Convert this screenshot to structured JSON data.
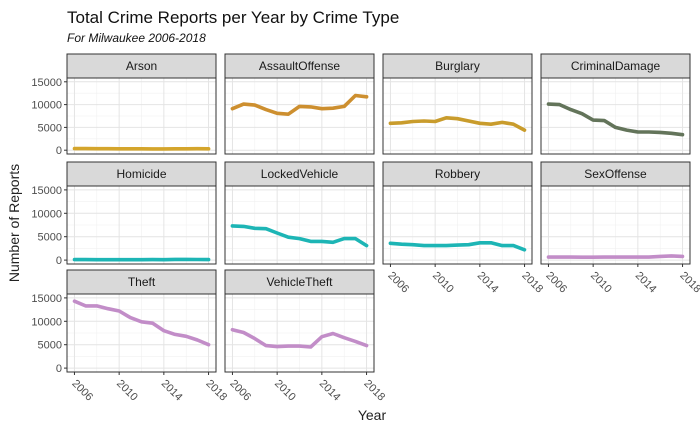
{
  "chart_data": {
    "type": "line",
    "title": "Total Crime Reports per Year by Crime Type",
    "subtitle": "For Milwaukee 2006-2018",
    "xlabel": "Year",
    "ylabel": "Number of Reports",
    "xlim": [
      2006,
      2018
    ],
    "ylim": [
      0,
      15000
    ],
    "x_ticks": [
      "2006",
      "2010",
      "2014",
      "2018"
    ],
    "y_ticks": [
      "0",
      "5000",
      "10000",
      "15000"
    ],
    "facet_layout": "wrap 4 columns",
    "grid": true,
    "x": [
      2006,
      2007,
      2008,
      2009,
      2010,
      2011,
      2012,
      2013,
      2014,
      2015,
      2016,
      2017,
      2018
    ],
    "series": [
      {
        "name": "Arson",
        "color": "#D4A52C",
        "values": [
          350,
          340,
          330,
          320,
          310,
          300,
          300,
          290,
          290,
          300,
          310,
          320,
          310
        ]
      },
      {
        "name": "AssaultOffense",
        "color": "#CD8F2F",
        "values": [
          9100,
          10100,
          9900,
          8900,
          8100,
          7900,
          9600,
          9500,
          9100,
          9200,
          9600,
          12000,
          11700
        ]
      },
      {
        "name": "Burglary",
        "color": "#C99C2C",
        "values": [
          5900,
          6000,
          6300,
          6400,
          6300,
          7100,
          6900,
          6400,
          5900,
          5700,
          6100,
          5700,
          4400
        ]
      },
      {
        "name": "CriminalDamage",
        "color": "#63745A",
        "values": [
          10100,
          10000,
          8900,
          8000,
          6600,
          6500,
          5000,
          4400,
          4000,
          4000,
          3900,
          3700,
          3400
        ]
      },
      {
        "name": "Homicide",
        "color": "#1DB5B5",
        "values": [
          110,
          105,
          75,
          80,
          95,
          90,
          95,
          105,
          90,
          145,
          140,
          120,
          100
        ]
      },
      {
        "name": "LockedVehicle",
        "color": "#1DB5B5",
        "values": [
          7300,
          7200,
          6800,
          6700,
          5800,
          4900,
          4600,
          4000,
          4000,
          3800,
          4600,
          4600,
          3100
        ]
      },
      {
        "name": "Robbery",
        "color": "#1DB5B5",
        "values": [
          3600,
          3400,
          3300,
          3100,
          3100,
          3100,
          3200,
          3300,
          3700,
          3700,
          3100,
          3100,
          2200
        ]
      },
      {
        "name": "SexOffense",
        "color": "#C28DC8",
        "values": [
          650,
          640,
          650,
          620,
          630,
          640,
          650,
          650,
          640,
          650,
          800,
          900,
          780
        ]
      },
      {
        "name": "Theft",
        "color": "#C28DC8",
        "values": [
          14300,
          13300,
          13300,
          12700,
          12200,
          10800,
          9900,
          9600,
          8000,
          7200,
          6800,
          6000,
          5000
        ]
      },
      {
        "name": "VehicleTheft",
        "color": "#C28DC8",
        "values": [
          8200,
          7600,
          6300,
          4800,
          4600,
          4700,
          4700,
          4500,
          6700,
          7400,
          6500,
          5700,
          4800
        ]
      }
    ]
  }
}
